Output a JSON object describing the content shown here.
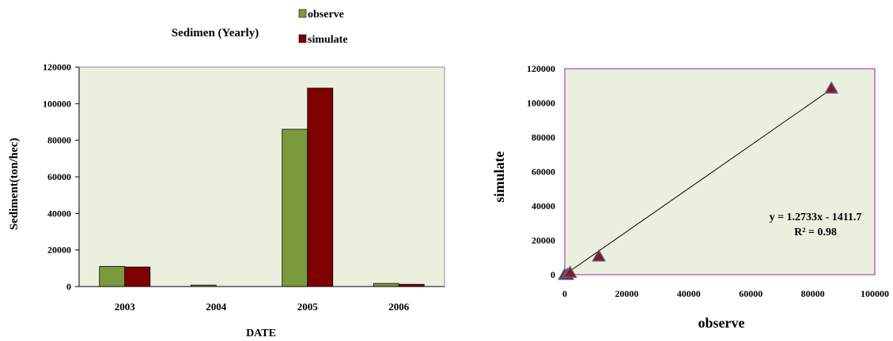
{
  "chart_data": [
    {
      "type": "bar",
      "title": "Sedimen (Yearly)",
      "xlabel": "DATE",
      "ylabel": "Sediment(ton/hec)",
      "categories": [
        "2003",
        "2004",
        "2005",
        "2006"
      ],
      "series": [
        {
          "name": "observe",
          "values": [
            11000,
            800,
            86000,
            1700
          ],
          "color": "#7a9a3c"
        },
        {
          "name": "simulate",
          "values": [
            10700,
            0,
            108500,
            1200
          ],
          "color": "#7f0000"
        }
      ],
      "ylim": [
        0,
        120000
      ],
      "yticks": [
        "0",
        "20000",
        "40000",
        "60000",
        "80000",
        "100000",
        "120000"
      ],
      "legend_placement": "top",
      "plot_background": "#ebf0de",
      "grid": false
    },
    {
      "type": "scatter",
      "xlabel": "observe",
      "ylabel": "simulate",
      "points": [
        {
          "x": 0,
          "y": 0
        },
        {
          "x": 800,
          "y": 0
        },
        {
          "x": 1700,
          "y": 1200
        },
        {
          "x": 11000,
          "y": 10700
        },
        {
          "x": 86000,
          "y": 108500
        }
      ],
      "trendline": {
        "slope": 1.2733,
        "intercept": -1411.7,
        "x_range": [
          0,
          86000
        ]
      },
      "equation_label": "y = 1.2733x - 1411.7",
      "r2_label": "R² = 0.98",
      "xlim": [
        0,
        100000
      ],
      "ylim": [
        0,
        120000
      ],
      "xticks": [
        "0",
        "20000",
        "40000",
        "60000",
        "80000",
        "100000"
      ],
      "yticks": [
        "0",
        "20000",
        "40000",
        "60000",
        "80000",
        "100000",
        "120000"
      ],
      "marker": "triangle",
      "marker_fill": "#8b1a1a",
      "marker_stroke": "#4a6fa5",
      "plot_background": "#ebf0de",
      "grid": false
    }
  ]
}
